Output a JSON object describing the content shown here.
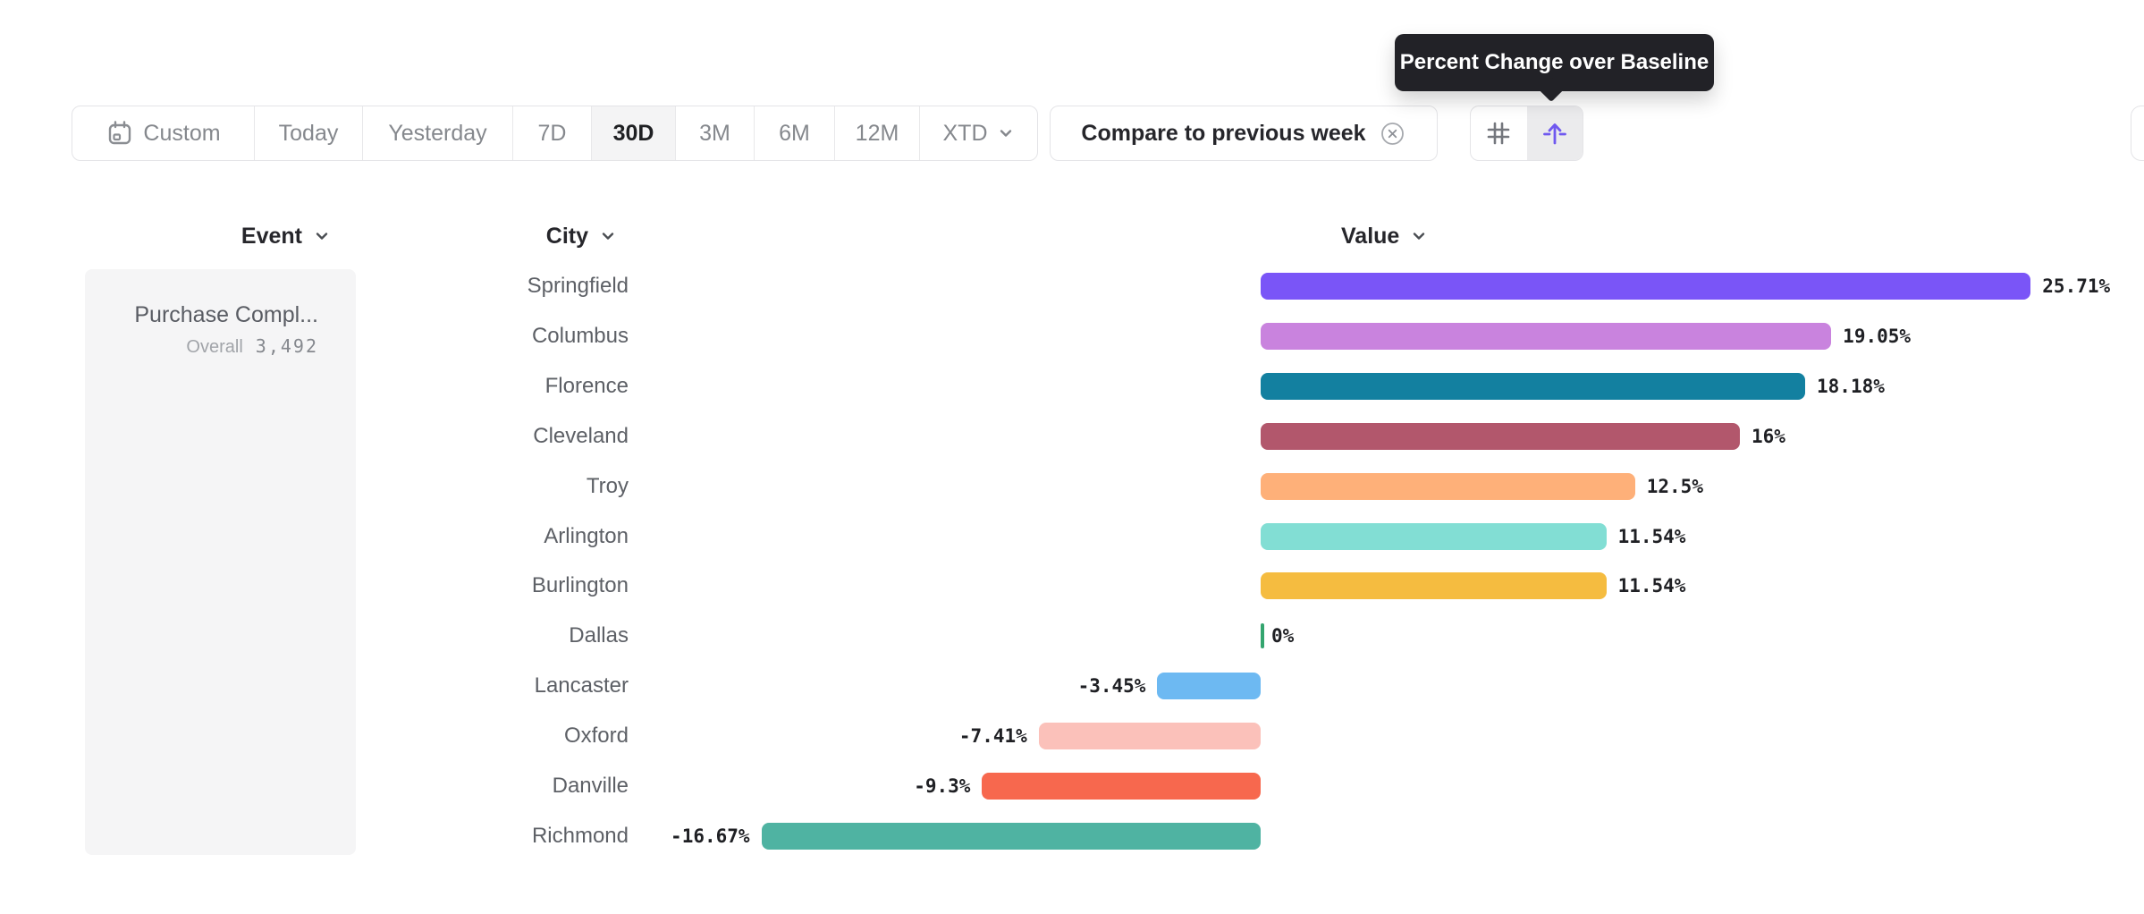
{
  "tooltip": {
    "text": "Percent Change over Baseline"
  },
  "toolbar": {
    "date_ranges": [
      {
        "label": "Custom",
        "icon": "calendar",
        "selected": false,
        "chevron": false
      },
      {
        "label": "Today",
        "selected": false,
        "chevron": false
      },
      {
        "label": "Yesterday",
        "selected": false,
        "chevron": false
      },
      {
        "label": "7D",
        "selected": false,
        "chevron": false
      },
      {
        "label": "30D",
        "selected": true,
        "chevron": false
      },
      {
        "label": "3M",
        "selected": false,
        "chevron": false
      },
      {
        "label": "6M",
        "selected": false,
        "chevron": false
      },
      {
        "label": "12M",
        "selected": false,
        "chevron": false
      },
      {
        "label": "XTD",
        "selected": false,
        "chevron": true
      }
    ],
    "compare": {
      "label": "Compare to previous week",
      "clear_icon": "circle-x-icon"
    },
    "view_toggle": {
      "buttons": [
        {
          "name": "grid-view",
          "icon": "hash-grid-icon",
          "active": false
        },
        {
          "name": "baseline-view",
          "icon": "arrow-up-baseline-icon",
          "active": true,
          "accent": "#6f58ef"
        }
      ]
    }
  },
  "table": {
    "columns": [
      {
        "label": "Event"
      },
      {
        "label": "City"
      },
      {
        "label": "Value"
      }
    ],
    "event": {
      "name": "Purchase Compl...",
      "overall_label": "Overall",
      "overall_value": "3,492"
    }
  },
  "chart_data": {
    "type": "bar",
    "orientation": "horizontal",
    "title": "Percent Change over Baseline",
    "xlabel": "Value",
    "ylabel": "City",
    "unit": "%",
    "baseline": 0,
    "xlim": [
      -16.67,
      25.71
    ],
    "grid": false,
    "legend": false,
    "categories": [
      "Springfield",
      "Columbus",
      "Florence",
      "Cleveland",
      "Troy",
      "Arlington",
      "Burlington",
      "Dallas",
      "Lancaster",
      "Oxford",
      "Danville",
      "Richmond"
    ],
    "values": [
      25.71,
      19.05,
      18.18,
      16,
      12.5,
      11.54,
      11.54,
      0,
      -3.45,
      -7.41,
      -9.3,
      -16.67
    ],
    "value_labels": [
      "25.71%",
      "19.05%",
      "18.18%",
      "16%",
      "12.5%",
      "11.54%",
      "11.54%",
      "0%",
      "-3.45%",
      "-7.41%",
      "-9.3%",
      "-16.67%"
    ],
    "colors": [
      "#7A55F7",
      "#C983DE",
      "#1380A0",
      "#B2576C",
      "#FEB079",
      "#82DED4",
      "#F5BC40",
      "#34A56F",
      "#6DB9F2",
      "#FBC1BA",
      "#F7684E",
      "#4FB3A2"
    ]
  }
}
